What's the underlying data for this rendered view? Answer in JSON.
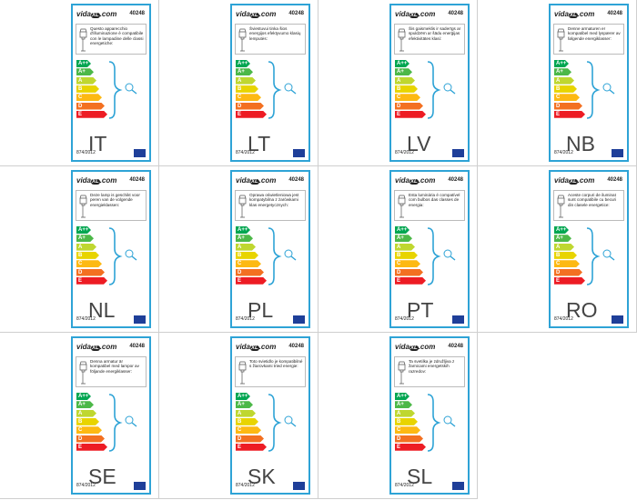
{
  "brand": {
    "name": "vida",
    "mark": "XL",
    "suffix": ".com"
  },
  "product_number": "40248",
  "regulation": "874/2012",
  "energy_classes": [
    "A++",
    "A+",
    "A",
    "B",
    "C",
    "D",
    "E"
  ],
  "labels": [
    {
      "code": "IT",
      "text": "Questo apparecchio d'illuminazione è compatibile con le lampadine delle classi energetiche:"
    },
    {
      "code": "LT",
      "text": "Šviestuvui tinka šios energijos efektyvumo klasių lemputės:"
    },
    {
      "code": "LV",
      "text": "Šis gaismeklis ir saderīgs ar spuldzēm ar šādu enerģijas efektivitātes klasi:"
    },
    {
      "code": "NB",
      "text": "Denne armaturen er kompatibel med lyspærer av følgende energiklasser:"
    },
    {
      "code": "NL",
      "text": "Deze lamp is geschikt voor peren van de volgende energieklassen:"
    },
    {
      "code": "PL",
      "text": "Oprawa oświetleniowa jest kompatybilna z żarówkami klas energetycznych:"
    },
    {
      "code": "PT",
      "text": "Esta luminária é compatível com bulbos das classes de energia:"
    },
    {
      "code": "RO",
      "text": "Aceste corpuri de iluminat sunt compatibile cu becuri din clasele energetice:"
    },
    {
      "code": "SE",
      "text": "Denna armatur är kompatibel med lampor av följande energiklasser:"
    },
    {
      "code": "SK",
      "text": "Toto svietidlo je kompatibilné s žiarovkami tried energie:"
    },
    {
      "code": "SL",
      "text": "Ta svetilka je združljiva z žarnicami energetskih razredov:"
    }
  ]
}
